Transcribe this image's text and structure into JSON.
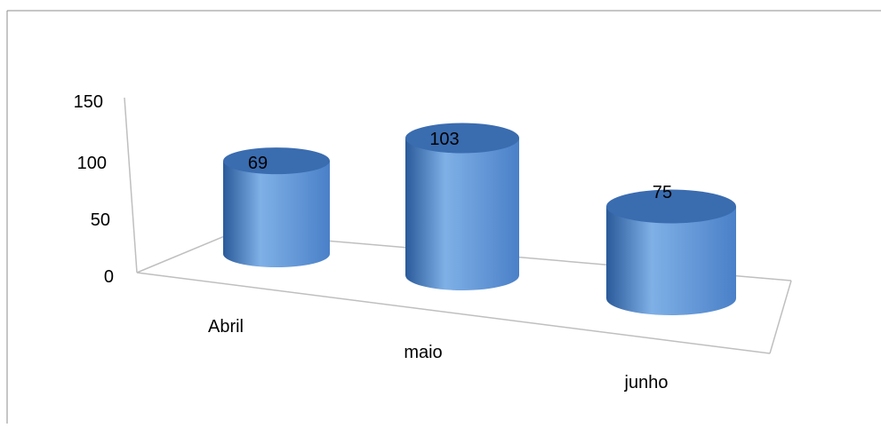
{
  "chart_data": {
    "type": "bar",
    "style": "3d-cylinder",
    "categories": [
      "Abril",
      "maio",
      "junho"
    ],
    "values": [
      69,
      103,
      75
    ],
    "data_labels": [
      "69",
      "103",
      "75"
    ],
    "y_ticks": [
      "0",
      "50",
      "100",
      "150"
    ],
    "ylim": [
      0,
      150
    ],
    "title": "",
    "xlabel": "",
    "ylabel": "",
    "grid": false,
    "legend": "none",
    "colors": {
      "bar_light": "#7fb0e6",
      "bar_mid": "#4a80c8",
      "bar_dark": "#2a5a9a",
      "bar_top": "#3a6cb0",
      "axis": "#bfbfbf",
      "frame": "#8c8c8c"
    }
  }
}
